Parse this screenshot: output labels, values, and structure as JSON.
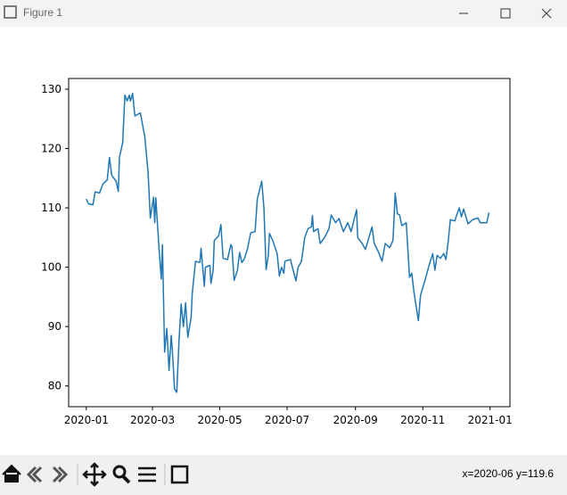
{
  "window": {
    "title": "Figure 1",
    "status": "x=2020-06 y=119.6"
  },
  "chart_data": {
    "type": "line",
    "color": "#1f77b4",
    "xlim": [
      "2019-12-16",
      "2021-01-19"
    ],
    "ylim": [
      76.5,
      131.8
    ],
    "xticks": [
      {
        "value": "2020-01-01",
        "label": "2020-01"
      },
      {
        "value": "2020-03-01",
        "label": "2020-03"
      },
      {
        "value": "2020-05-01",
        "label": "2020-05"
      },
      {
        "value": "2020-07-01",
        "label": "2020-07"
      },
      {
        "value": "2020-09-01",
        "label": "2020-09"
      },
      {
        "value": "2020-11-01",
        "label": "2020-11"
      },
      {
        "value": "2021-01-01",
        "label": "2021-01"
      }
    ],
    "yticks": [
      80,
      90,
      100,
      110,
      120,
      130
    ],
    "x": [
      "2020-01-01",
      "2020-01-03",
      "2020-01-07",
      "2020-01-09",
      "2020-01-13",
      "2020-01-16",
      "2020-01-20",
      "2020-01-22",
      "2020-01-24",
      "2020-01-28",
      "2020-01-30",
      "2020-01-31",
      "2020-02-03",
      "2020-02-05",
      "2020-02-07",
      "2020-02-09",
      "2020-02-10",
      "2020-02-12",
      "2020-02-14",
      "2020-02-19",
      "2020-02-23",
      "2020-02-26",
      "2020-02-28",
      "2020-03-02",
      "2020-03-03",
      "2020-03-04",
      "2020-03-07",
      "2020-03-09",
      "2020-03-10",
      "2020-03-12",
      "2020-03-14",
      "2020-03-16",
      "2020-03-18",
      "2020-03-19",
      "2020-03-21",
      "2020-03-23",
      "2020-03-25",
      "2020-03-27",
      "2020-03-29",
      "2020-03-31",
      "2020-04-02",
      "2020-04-05",
      "2020-04-06",
      "2020-04-09",
      "2020-04-13",
      "2020-04-14",
      "2020-04-17",
      "2020-04-18",
      "2020-04-22",
      "2020-04-23",
      "2020-04-25",
      "2020-04-26",
      "2020-04-30",
      "2020-05-02",
      "2020-05-04",
      "2020-05-08",
      "2020-05-11",
      "2020-05-12",
      "2020-05-14",
      "2020-05-17",
      "2020-05-19",
      "2020-05-21",
      "2020-05-23",
      "2020-05-26",
      "2020-05-29",
      "2020-06-02",
      "2020-06-04",
      "2020-06-08",
      "2020-06-10",
      "2020-06-12",
      "2020-06-14",
      "2020-06-15",
      "2020-06-18",
      "2020-06-22",
      "2020-06-24",
      "2020-06-26",
      "2020-06-28",
      "2020-06-29",
      "2020-07-04",
      "2020-07-09",
      "2020-07-11",
      "2020-07-14",
      "2020-07-17",
      "2020-07-20",
      "2020-07-23",
      "2020-07-24",
      "2020-07-25",
      "2020-07-29",
      "2020-07-31",
      "2020-08-04",
      "2020-08-08",
      "2020-08-10",
      "2020-08-14",
      "2020-08-17",
      "2020-08-21",
      "2020-08-25",
      "2020-08-28",
      "2020-09-02",
      "2020-09-03",
      "2020-09-07",
      "2020-09-10",
      "2020-09-16",
      "2020-09-18",
      "2020-09-22",
      "2020-09-25",
      "2020-09-28",
      "2020-10-02",
      "2020-10-05",
      "2020-10-07",
      "2020-10-09",
      "2020-10-11",
      "2020-10-13",
      "2020-10-17",
      "2020-10-20",
      "2020-10-22",
      "2020-10-24",
      "2020-10-28",
      "2020-10-30",
      "2020-11-03",
      "2020-11-07",
      "2020-11-10",
      "2020-11-12",
      "2020-11-14",
      "2020-11-17",
      "2020-11-20",
      "2020-11-22",
      "2020-11-24",
      "2020-11-26",
      "2020-11-30",
      "2020-12-04",
      "2020-12-06",
      "2020-12-08",
      "2020-12-12",
      "2020-12-16",
      "2020-12-21",
      "2020-12-23",
      "2020-12-29",
      "2020-12-31"
    ],
    "values": [
      111.5,
      110.7,
      110.5,
      112.7,
      112.5,
      114,
      114.7,
      118.5,
      115.5,
      114.5,
      112.8,
      118.5,
      121,
      129,
      128,
      129,
      128,
      129.3,
      125.5,
      126,
      122,
      116,
      108.3,
      111.8,
      107.5,
      111.7,
      103,
      98,
      103.8,
      85.7,
      89.7,
      82.6,
      88.5,
      86,
      79.5,
      78.9,
      87.5,
      93.8,
      90,
      94,
      88.2,
      91.5,
      95.5,
      101,
      100.8,
      103.2,
      96.8,
      100,
      100.3,
      97.3,
      99.5,
      104.5,
      105.3,
      107.2,
      101.5,
      101.3,
      103.8,
      103.5,
      97.8,
      99.5,
      102.5,
      100.8,
      101.3,
      103,
      105.8,
      106,
      111.5,
      114.5,
      110,
      99.6,
      102,
      105.7,
      104.5,
      102.3,
      98.5,
      100,
      99,
      101,
      101.3,
      97.7,
      100,
      101,
      105,
      106.5,
      106.8,
      108.7,
      106,
      106.5,
      104,
      105,
      106.5,
      108.8,
      107.5,
      108.2,
      106,
      107.5,
      106,
      109.7,
      105,
      104,
      103,
      106.8,
      104,
      102.5,
      101,
      104,
      103.3,
      104.5,
      112.5,
      109,
      108.8,
      107,
      107.5,
      98.3,
      99,
      95.8,
      91,
      95.3,
      97.8,
      100.5,
      102.3,
      99.5,
      102,
      101.5,
      102.3,
      101.3,
      104.3,
      108,
      107.8,
      110,
      108.5,
      109.8,
      107.3,
      108,
      108.3,
      107.5,
      107.5,
      109.2
    ]
  }
}
